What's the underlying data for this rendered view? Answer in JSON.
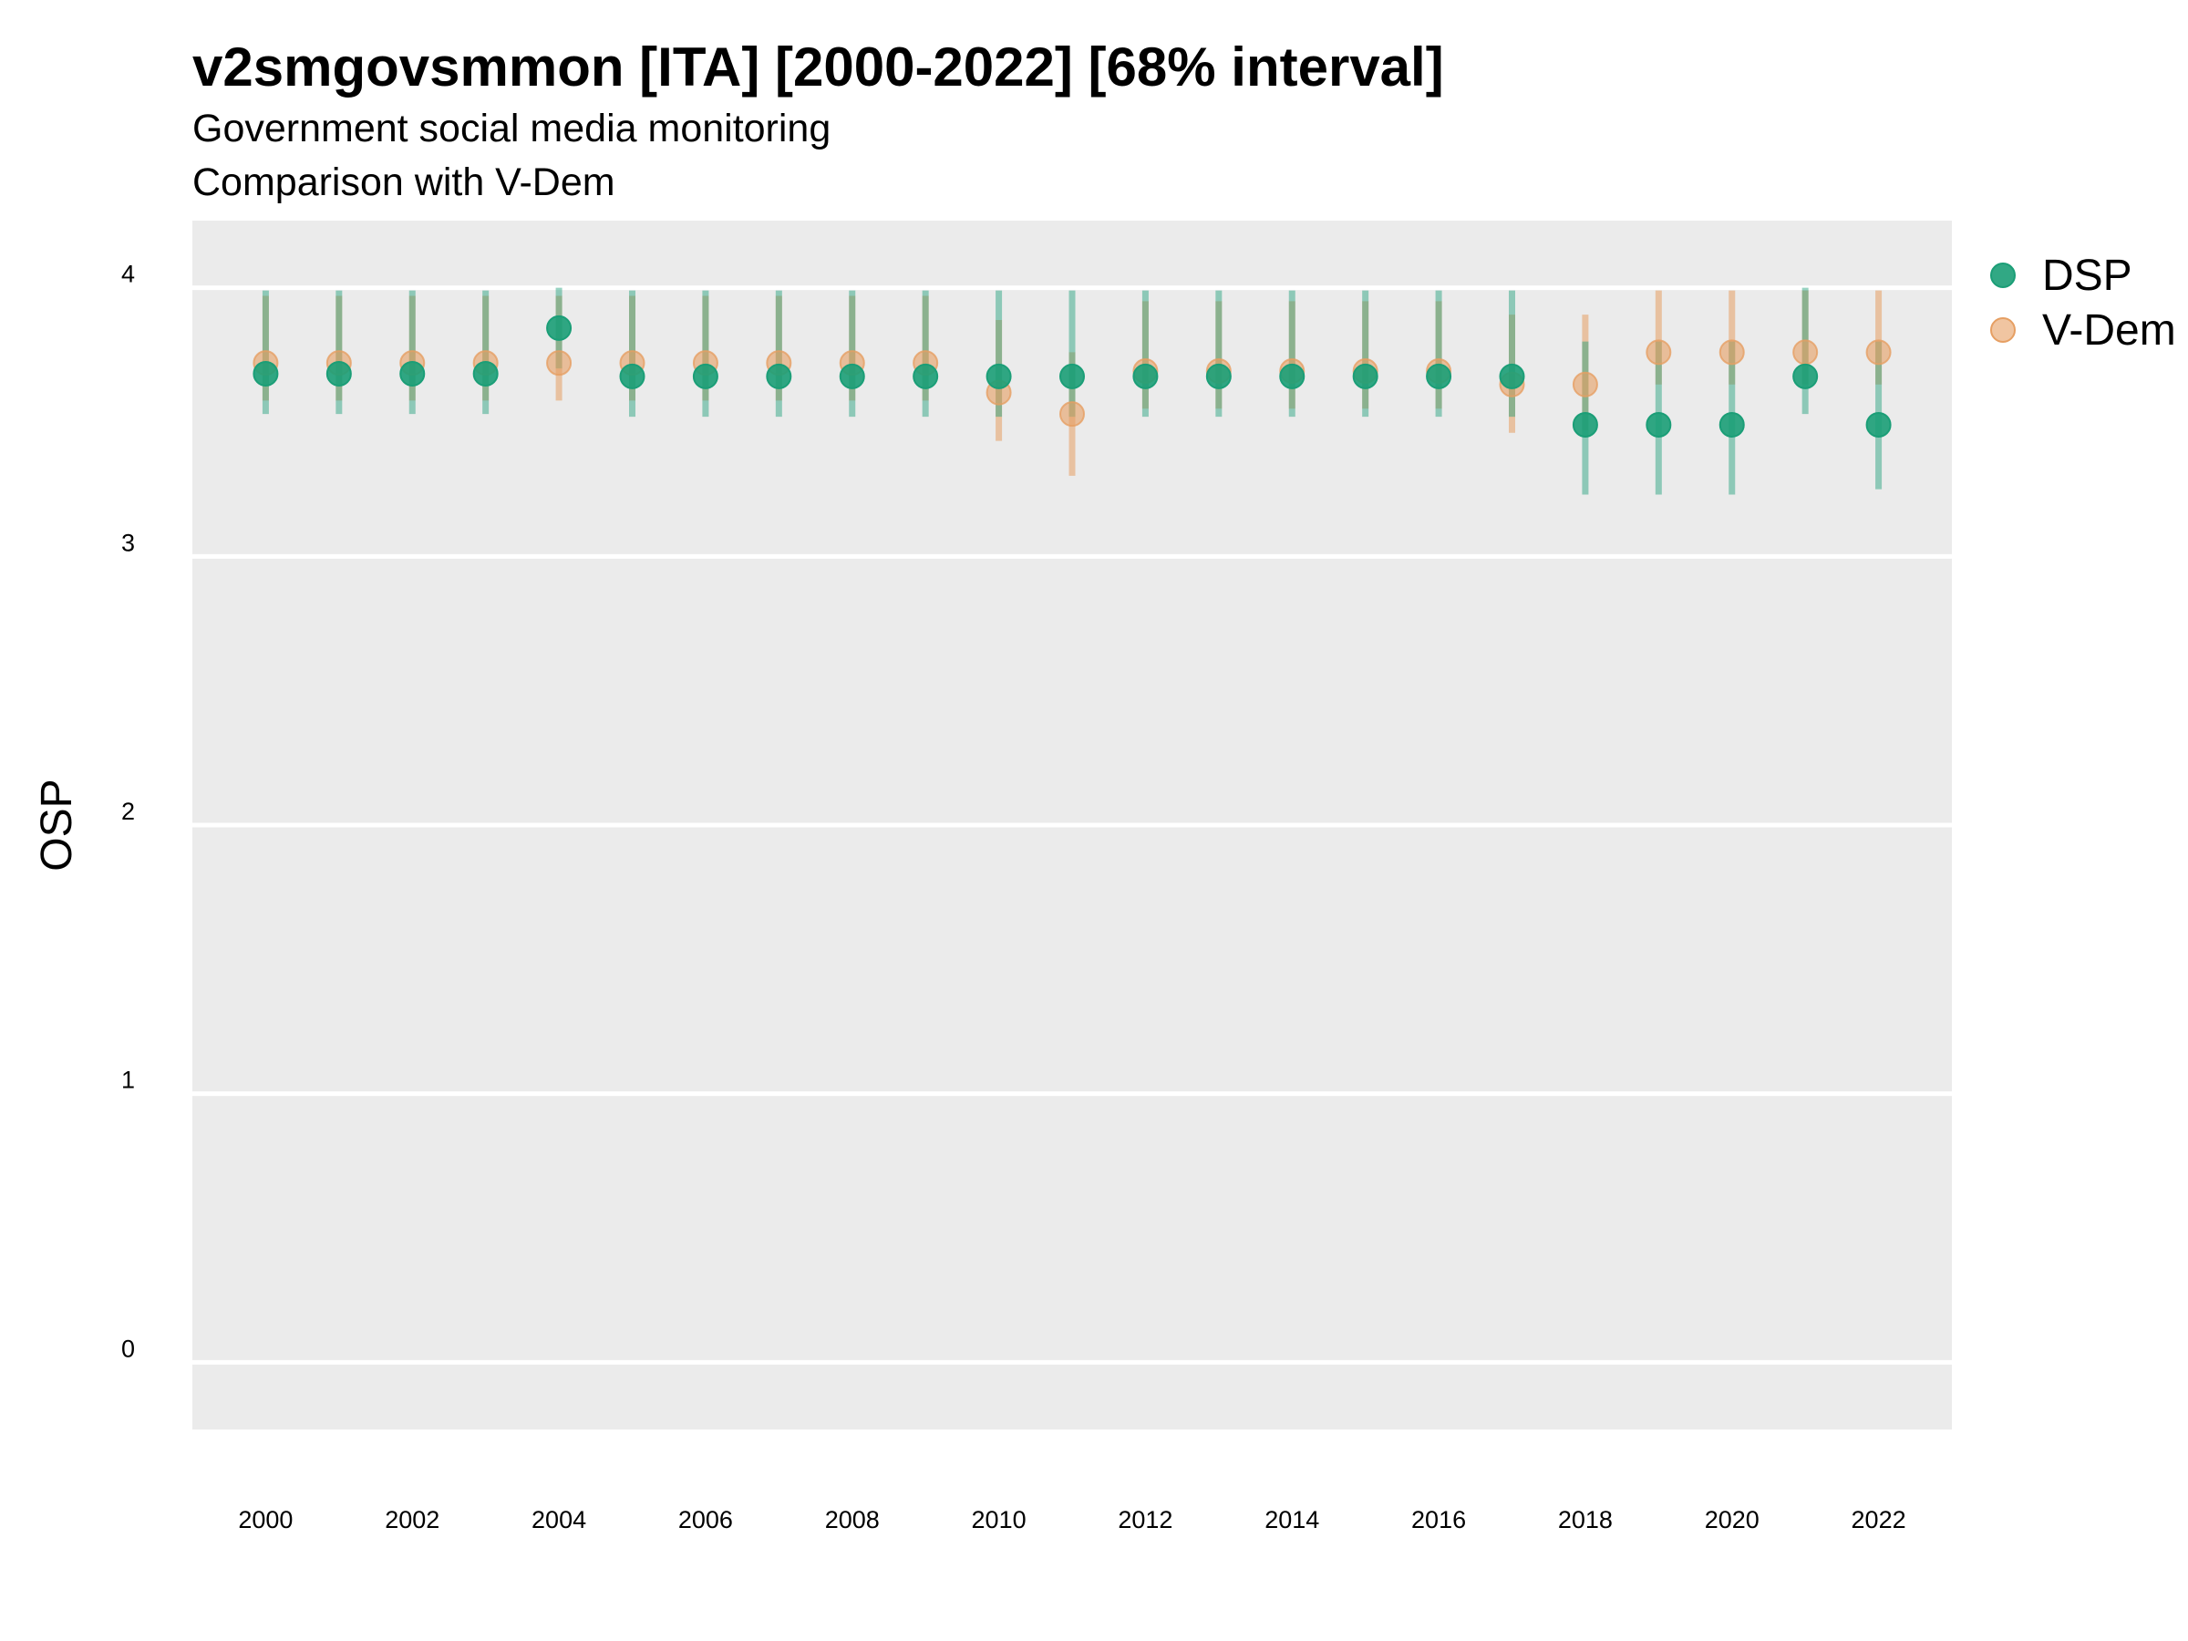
{
  "chart_data": {
    "type": "scatter",
    "title": "v2smgovsmmon [ITA] [2000-2022] [68% interval]",
    "subtitle": [
      "Government social media monitoring",
      "Comparison with V-Dem"
    ],
    "xlabel": "",
    "ylabel": "OSP",
    "xlim": [
      1999,
      2023
    ],
    "ylim": [
      -0.25,
      4.25
    ],
    "grid": true,
    "legend_position": "right",
    "x_ticks": [
      "2000",
      "2002",
      "2004",
      "2006",
      "2008",
      "2010",
      "2012",
      "2014",
      "2016",
      "2018",
      "2020",
      "2022"
    ],
    "y_ticks": [
      "0",
      "1",
      "2",
      "3",
      "4"
    ],
    "x": [
      2000,
      2001,
      2002,
      2003,
      2004,
      2005,
      2006,
      2007,
      2008,
      2009,
      2010,
      2011,
      2012,
      2013,
      2014,
      2015,
      2016,
      2017,
      2018,
      2019,
      2020,
      2021,
      2022
    ],
    "series": [
      {
        "name": "V-Dem",
        "color": "#E69F63",
        "values": [
          3.72,
          3.72,
          3.72,
          3.72,
          3.72,
          3.72,
          3.72,
          3.72,
          3.72,
          3.72,
          3.61,
          3.53,
          3.69,
          3.69,
          3.69,
          3.69,
          3.69,
          3.64,
          3.64,
          3.76,
          3.76,
          3.76,
          3.76
        ],
        "lower": [
          3.58,
          3.58,
          3.58,
          3.58,
          3.58,
          3.58,
          3.58,
          3.58,
          3.58,
          3.58,
          3.43,
          3.3,
          3.55,
          3.55,
          3.55,
          3.55,
          3.55,
          3.46,
          3.47,
          3.64,
          3.64,
          3.64,
          3.64
        ],
        "upper": [
          3.97,
          3.97,
          3.97,
          3.97,
          3.97,
          3.97,
          3.97,
          3.97,
          3.97,
          3.97,
          3.88,
          3.76,
          3.95,
          3.95,
          3.95,
          3.95,
          3.95,
          3.9,
          3.9,
          3.99,
          3.99,
          3.99,
          3.99
        ]
      },
      {
        "name": "DSP",
        "color": "#1B9E77",
        "values": [
          3.68,
          3.68,
          3.68,
          3.68,
          3.85,
          3.67,
          3.67,
          3.67,
          3.67,
          3.67,
          3.67,
          3.67,
          3.67,
          3.67,
          3.67,
          3.67,
          3.67,
          3.67,
          3.49,
          3.49,
          3.49,
          3.67,
          3.49
        ],
        "lower": [
          3.53,
          3.53,
          3.53,
          3.53,
          3.7,
          3.52,
          3.52,
          3.52,
          3.52,
          3.52,
          3.52,
          3.52,
          3.52,
          3.52,
          3.52,
          3.52,
          3.52,
          3.52,
          3.23,
          3.23,
          3.23,
          3.53,
          3.25
        ],
        "upper": [
          3.99,
          3.99,
          3.99,
          3.99,
          4.0,
          3.99,
          3.99,
          3.99,
          3.99,
          3.99,
          3.99,
          3.99,
          3.99,
          3.99,
          3.99,
          3.99,
          3.99,
          3.99,
          3.8,
          3.8,
          3.8,
          4.0,
          3.8
        ]
      }
    ],
    "legend_order": [
      "DSP",
      "V-Dem"
    ]
  }
}
